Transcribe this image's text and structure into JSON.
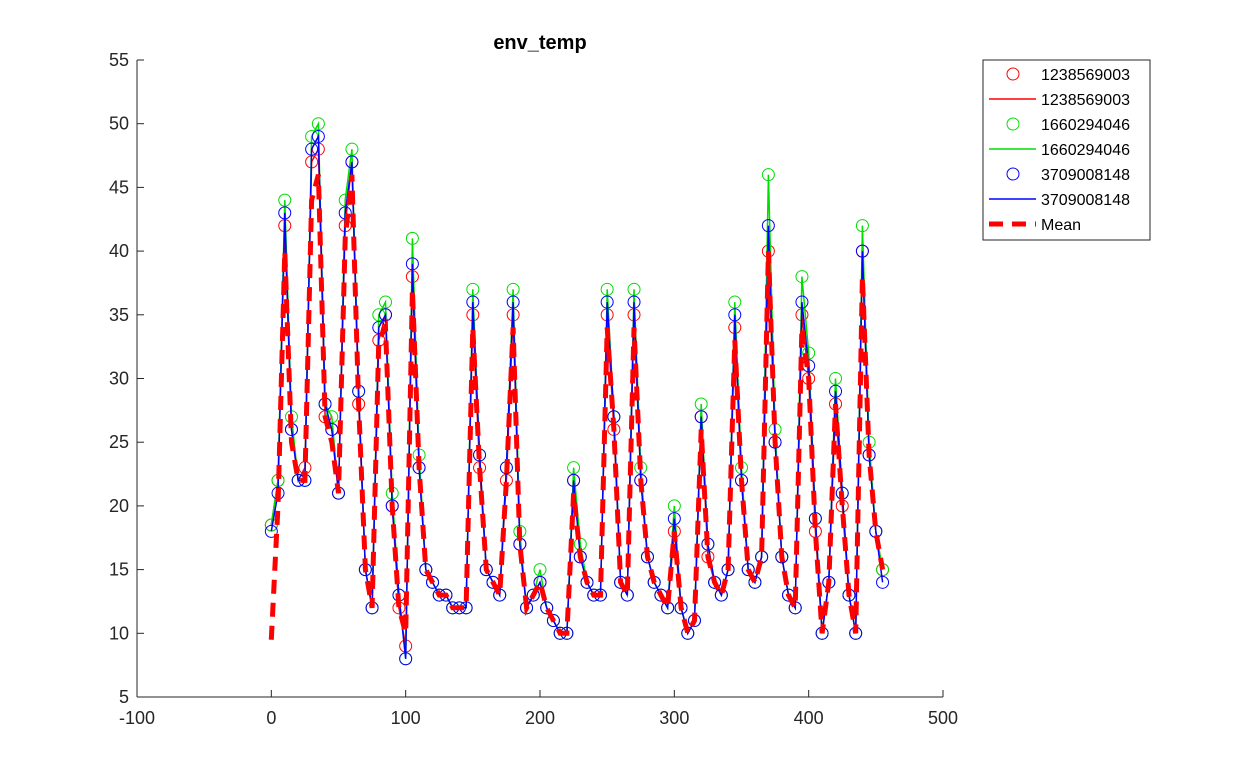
{
  "chart_data": {
    "type": "line",
    "title": "env_temp",
    "xlabel": "",
    "ylabel": "",
    "xlim": [
      -100,
      500
    ],
    "ylim": [
      5,
      55
    ],
    "xticks": [
      -100,
      0,
      100,
      200,
      300,
      400,
      500
    ],
    "yticks": [
      5,
      10,
      15,
      20,
      25,
      30,
      35,
      40,
      45,
      50,
      55
    ],
    "grid": false,
    "legend_position": "outside-top-right",
    "legend": [
      "1238569003",
      "1238569003",
      "1660294046",
      "1660294046",
      "3709008148",
      "3709008148",
      "Mean"
    ],
    "x": [
      0,
      5,
      10,
      15,
      20,
      25,
      30,
      35,
      40,
      45,
      50,
      55,
      60,
      65,
      70,
      75,
      80,
      85,
      90,
      95,
      100,
      105,
      110,
      115,
      120,
      125,
      130,
      135,
      140,
      145,
      150,
      155,
      160,
      165,
      170,
      175,
      180,
      185,
      190,
      195,
      200,
      205,
      210,
      215,
      220,
      225,
      230,
      235,
      240,
      245,
      250,
      255,
      260,
      265,
      270,
      275,
      280,
      285,
      290,
      295,
      300,
      305,
      310,
      315,
      320,
      325,
      330,
      335,
      340,
      345,
      350,
      355,
      360,
      365,
      370,
      375,
      380,
      385,
      390,
      395,
      400,
      405,
      410,
      415,
      420,
      425,
      430,
      435,
      440,
      445,
      450,
      455
    ],
    "series": [
      {
        "name": "1238569003",
        "color": "#ff0000",
        "marker": "circle",
        "linestyle": "solid",
        "values": [
          18.5,
          22,
          42,
          26,
          22,
          23,
          47,
          48,
          27,
          26,
          21,
          42,
          47,
          28,
          15,
          12,
          33,
          35,
          20,
          12,
          9,
          38,
          23,
          15,
          14,
          13,
          13,
          12,
          12,
          12,
          35,
          23,
          15,
          14,
          13,
          22,
          35,
          17,
          12,
          13,
          14,
          12,
          11,
          10,
          10,
          22,
          16,
          14,
          13,
          13,
          35,
          26,
          14,
          13,
          35,
          22,
          16,
          14,
          13,
          12,
          18,
          12,
          10,
          11,
          27,
          16,
          14,
          13,
          15,
          34,
          22,
          15,
          14,
          16,
          40,
          25,
          16,
          13,
          12,
          35,
          30,
          18,
          10,
          14,
          28,
          20,
          13,
          10,
          40,
          24,
          18,
          15
        ]
      },
      {
        "name": "1660294046",
        "color": "#00dd00",
        "marker": "circle",
        "linestyle": "solid",
        "values": [
          18.5,
          22,
          44,
          27,
          22,
          22,
          49,
          50,
          28,
          27,
          21,
          44,
          48,
          29,
          15,
          12,
          35,
          36,
          21,
          13,
          8,
          41,
          24,
          15,
          14,
          13,
          13,
          12,
          12,
          12,
          37,
          24,
          15,
          14,
          13,
          23,
          37,
          18,
          12,
          13,
          15,
          12,
          11,
          10,
          10,
          23,
          17,
          14,
          13,
          13,
          37,
          27,
          14,
          13,
          37,
          23,
          16,
          14,
          13,
          12,
          20,
          12,
          10,
          11,
          28,
          17,
          14,
          13,
          15,
          36,
          23,
          15,
          14,
          16,
          46,
          26,
          16,
          13,
          12,
          38,
          32,
          19,
          10,
          14,
          30,
          21,
          13,
          10,
          42,
          25,
          18,
          15
        ]
      },
      {
        "name": "3709008148",
        "color": "#0000ff",
        "marker": "circle",
        "linestyle": "solid",
        "values": [
          18,
          21,
          43,
          26,
          22,
          22,
          48,
          49,
          28,
          26,
          21,
          43,
          47,
          29,
          15,
          12,
          34,
          35,
          20,
          13,
          8,
          39,
          23,
          15,
          14,
          13,
          13,
          12,
          12,
          12,
          36,
          24,
          15,
          14,
          13,
          23,
          36,
          17,
          12,
          13,
          14,
          12,
          11,
          10,
          10,
          22,
          16,
          14,
          13,
          13,
          36,
          27,
          14,
          13,
          36,
          22,
          16,
          14,
          13,
          12,
          19,
          12,
          10,
          11,
          27,
          17,
          14,
          13,
          15,
          35,
          22,
          15,
          14,
          16,
          42,
          25,
          16,
          13,
          12,
          36,
          31,
          19,
          10,
          14,
          29,
          21,
          13,
          10,
          40,
          24,
          18,
          14
        ]
      },
      {
        "name": "Mean",
        "color": "#ff0000",
        "marker": "none",
        "linestyle": "dashed",
        "values": [
          9.5,
          20,
          40,
          25,
          22,
          22,
          44,
          46,
          27,
          25,
          21,
          41,
          46,
          28,
          15,
          12,
          33,
          34,
          20,
          12,
          10,
          37,
          23,
          15,
          14,
          13,
          13,
          12,
          12,
          12,
          34,
          23,
          15,
          14,
          13,
          22,
          34,
          17,
          12,
          13,
          14,
          12,
          11,
          10,
          10,
          21,
          16,
          14,
          13,
          13,
          34,
          26,
          14,
          13,
          34,
          22,
          16,
          14,
          13,
          12,
          18,
          12,
          10,
          11,
          26,
          16,
          14,
          13,
          15,
          33,
          22,
          15,
          14,
          16,
          40,
          25,
          16,
          13,
          12,
          34,
          30,
          18,
          10,
          14,
          28,
          20,
          13,
          10,
          38,
          24,
          18,
          15
        ]
      }
    ]
  }
}
